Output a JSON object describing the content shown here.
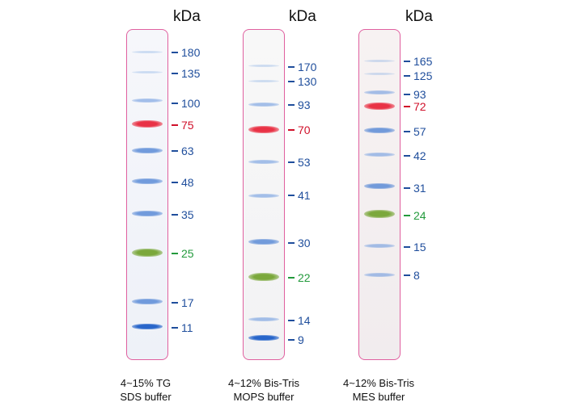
{
  "unit_label": "kDa",
  "colors": {
    "blue": "#1f4e9c",
    "red": "#d0102a",
    "green": "#239a3c",
    "lane_border": "#e0609f"
  },
  "ladders": [
    {
      "caption_line1": "4~15% TG",
      "caption_line2": "SDS buffer",
      "markers": [
        {
          "mw": "180",
          "color": "blue",
          "band": "faint"
        },
        {
          "mw": "135",
          "color": "blue",
          "band": "faint"
        },
        {
          "mw": "100",
          "color": "blue",
          "band": "light"
        },
        {
          "mw": "75",
          "color": "red",
          "band": "strong"
        },
        {
          "mw": "63",
          "color": "blue",
          "band": "medium"
        },
        {
          "mw": "48",
          "color": "blue",
          "band": "medium"
        },
        {
          "mw": "35",
          "color": "blue",
          "band": "medium"
        },
        {
          "mw": "25",
          "color": "green",
          "band": "strong"
        },
        {
          "mw": "17",
          "color": "blue",
          "band": "medium"
        },
        {
          "mw": "11",
          "color": "blue",
          "band": "strong"
        }
      ]
    },
    {
      "caption_line1": "4~12% Bis-Tris",
      "caption_line2": "MOPS buffer",
      "markers": [
        {
          "mw": "170",
          "color": "blue",
          "band": "faint"
        },
        {
          "mw": "130",
          "color": "blue",
          "band": "faint"
        },
        {
          "mw": "93",
          "color": "blue",
          "band": "light"
        },
        {
          "mw": "70",
          "color": "red",
          "band": "strong"
        },
        {
          "mw": "53",
          "color": "blue",
          "band": "light"
        },
        {
          "mw": "41",
          "color": "blue",
          "band": "light"
        },
        {
          "mw": "30",
          "color": "blue",
          "band": "medium"
        },
        {
          "mw": "22",
          "color": "green",
          "band": "strong"
        },
        {
          "mw": "14",
          "color": "blue",
          "band": "light"
        },
        {
          "mw": "9",
          "color": "blue",
          "band": "strong"
        }
      ]
    },
    {
      "caption_line1": "4~12% Bis-Tris",
      "caption_line2": "MES buffer",
      "markers": [
        {
          "mw": "165",
          "color": "blue",
          "band": "faint"
        },
        {
          "mw": "125",
          "color": "blue",
          "band": "faint"
        },
        {
          "mw": "93",
          "color": "blue",
          "band": "light"
        },
        {
          "mw": "72",
          "color": "red",
          "band": "strong"
        },
        {
          "mw": "57",
          "color": "blue",
          "band": "medium"
        },
        {
          "mw": "42",
          "color": "blue",
          "band": "light"
        },
        {
          "mw": "31",
          "color": "blue",
          "band": "medium"
        },
        {
          "mw": "24",
          "color": "green",
          "band": "strong"
        },
        {
          "mw": "15",
          "color": "blue",
          "band": "light"
        },
        {
          "mw": "8",
          "color": "blue",
          "band": "light"
        }
      ]
    }
  ]
}
